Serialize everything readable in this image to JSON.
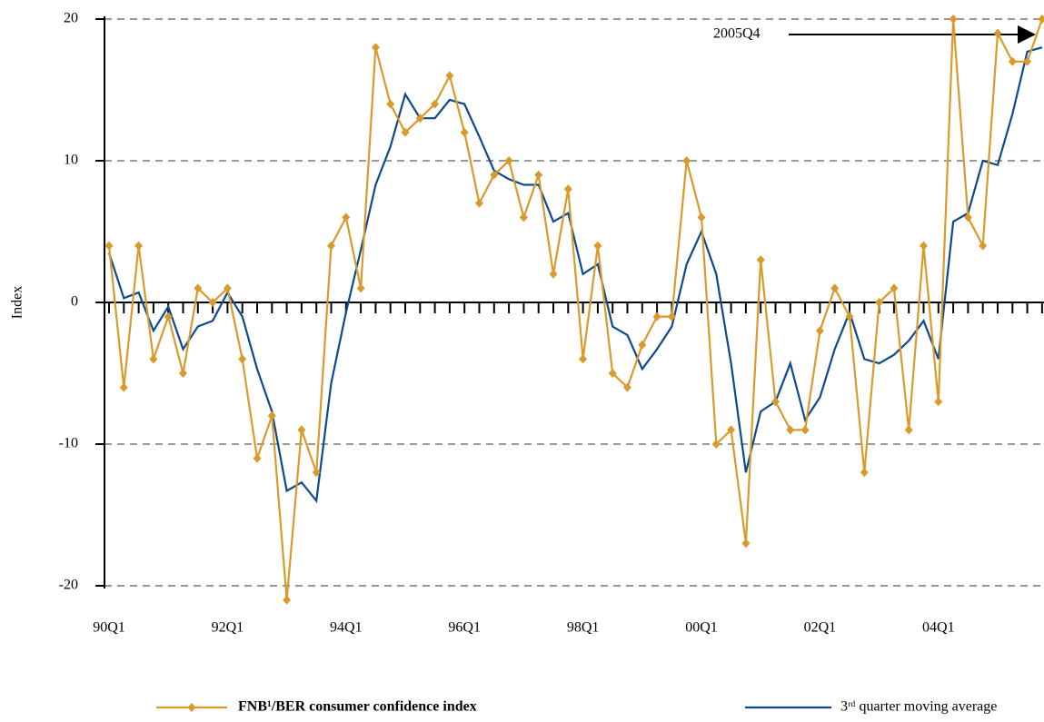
{
  "chart_data": {
    "type": "line",
    "y_label": "Index",
    "annotation": "2005Q4",
    "categories": [
      "90Q1",
      null,
      null,
      null,
      null,
      null,
      null,
      null,
      "92Q1",
      null,
      null,
      null,
      null,
      null,
      null,
      null,
      "94Q1",
      null,
      null,
      null,
      null,
      null,
      null,
      null,
      "96Q1",
      null,
      null,
      null,
      null,
      null,
      null,
      null,
      "98Q1",
      null,
      null,
      null,
      null,
      null,
      null,
      null,
      "00Q1",
      null,
      null,
      null,
      null,
      null,
      null,
      null,
      "02Q1",
      null,
      null,
      null,
      null,
      null,
      null,
      null,
      "04Q1",
      null,
      null,
      null,
      null,
      null,
      null,
      null
    ],
    "series": [
      {
        "name": "FNB¹/BER consumer confidence index",
        "color": "#d99a2b",
        "marker": "diamond",
        "values": [
          4,
          -6,
          4,
          -4,
          -1,
          -5,
          1,
          0,
          1,
          -4,
          -11,
          -8,
          -21,
          -9,
          -12,
          4,
          6,
          1,
          18,
          14,
          12,
          13,
          14,
          16,
          12,
          7,
          9,
          10,
          6,
          9,
          2,
          8,
          -4,
          4,
          -5,
          -6,
          -3,
          -1,
          -1,
          10,
          6,
          -10,
          -9,
          -17,
          3,
          -7,
          -9,
          -9,
          -2,
          1,
          -1,
          -12,
          0,
          1,
          -9,
          4,
          -7,
          20,
          6,
          4,
          19,
          17,
          17,
          20
        ]
      },
      {
        "name": "3ʳᵈ quarter moving average",
        "color": "#0d4a8c",
        "values": [
          3.5,
          0.3,
          0.7,
          -2,
          -0.3,
          -3.3,
          -1.7,
          -1.3,
          0.7,
          -1,
          -4.7,
          -7.7,
          -13.3,
          -12.7,
          -14,
          -5.7,
          -0.7,
          3.7,
          8.3,
          11,
          14.7,
          13,
          13,
          14.3,
          14,
          11.7,
          9.3,
          8.7,
          8.3,
          8.3,
          5.7,
          6.3,
          2,
          2.7,
          -1.7,
          -2.3,
          -4.7,
          -3.3,
          -1.7,
          2.7,
          5,
          2,
          -4.3,
          -12,
          -7.7,
          -7,
          -4.3,
          -8.3,
          -6.7,
          -3.3,
          -0.7,
          -4,
          -4.3,
          -3.7,
          -2.7,
          -1.3,
          -4,
          5.7,
          6.3,
          10,
          9.7,
          13.3,
          17.7,
          18
        ]
      }
    ],
    "ylim": [
      -20,
      20
    ],
    "yticks": [
      -20,
      -10,
      0,
      10,
      20
    ],
    "grid": true
  }
}
